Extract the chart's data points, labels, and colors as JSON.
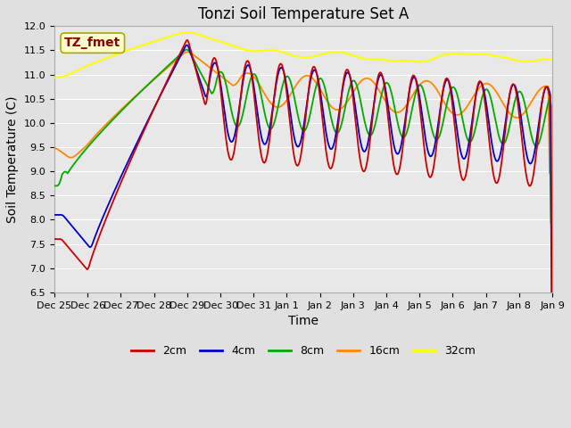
{
  "title": "Tonzi Soil Temperature Set A",
  "xlabel": "Time",
  "ylabel": "Soil Temperature (C)",
  "ylim": [
    6.5,
    12.0
  ],
  "annotation_text": "TZ_fmet",
  "annotation_color": "#8B0000",
  "annotation_bg": "#FFFFCC",
  "annotation_border": "#AAAA00",
  "series_colors": {
    "2cm": "#CC0000",
    "4cm": "#0000CC",
    "8cm": "#00AA00",
    "16cm": "#FF8800",
    "32cm": "#FFFF00"
  },
  "x_tick_labels": [
    "Dec 25",
    "Dec 26",
    "Dec 27",
    "Dec 28",
    "Dec 29",
    "Dec 30",
    "Dec 31",
    "Jan 1",
    "Jan 2",
    "Jan 3",
    "Jan 4",
    "Jan 5",
    "Jan 6",
    "Jan 7",
    "Jan 8",
    "Jan 9"
  ],
  "background_color": "#E0E0E0",
  "plot_bg_color": "#E8E8E8",
  "grid_color": "#FFFFFF",
  "title_fontsize": 12,
  "axis_label_fontsize": 10,
  "tick_fontsize": 8,
  "legend_fontsize": 9
}
